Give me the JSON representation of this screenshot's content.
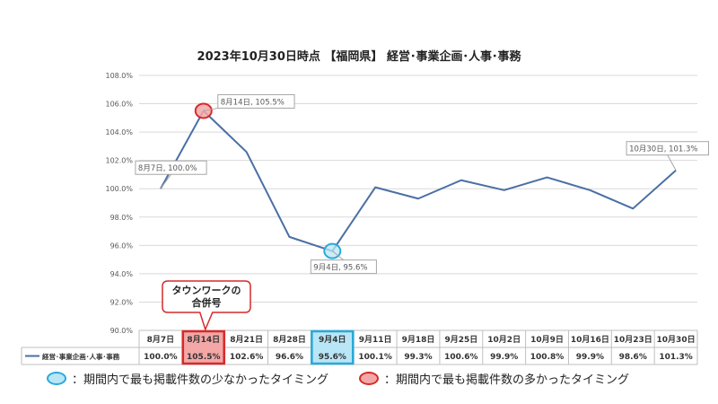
{
  "chart_data": {
    "type": "line",
    "title": "2023年10月30日時点 【福岡県】 経営･事業企画･人事･事務",
    "categories": [
      "8月7日",
      "8月14日",
      "8月21日",
      "8月28日",
      "9月4日",
      "9月11日",
      "9月18日",
      "9月25日",
      "10月2日",
      "10月9日",
      "10月16日",
      "10月23日",
      "10月30日"
    ],
    "series": [
      {
        "name": "経営･事業企画･人事･事務",
        "values": [
          100.0,
          105.5,
          102.6,
          96.6,
          95.6,
          100.1,
          99.3,
          100.6,
          99.9,
          100.8,
          99.9,
          98.6,
          101.3
        ],
        "color": "#4a6fa5"
      }
    ],
    "table_values": [
      "100.0%",
      "105.5%",
      "102.6%",
      "96.6%",
      "95.6%",
      "100.1%",
      "99.3%",
      "100.6%",
      "99.9%",
      "100.8%",
      "99.9%",
      "98.6%",
      "101.3%"
    ],
    "yticks": [
      "90.0%",
      "92.0%",
      "94.0%",
      "96.0%",
      "98.0%",
      "100.0%",
      "102.0%",
      "104.0%",
      "106.0%",
      "108.0%"
    ],
    "ylim": [
      90,
      108
    ],
    "grid": true,
    "legend_placement": "data-table",
    "annotations": {
      "points": [
        {
          "index": 0,
          "label": "8月7日, 100.0%"
        },
        {
          "index": 1,
          "label": "8月14日, 105.5%"
        },
        {
          "index": 4,
          "label": "9月4日, 95.6%"
        },
        {
          "index": 12,
          "label": "10月30日, 101.3%"
        }
      ],
      "max_index": 1,
      "min_index": 4,
      "callout_lines": [
        "タウンワークの",
        "合併号"
      ],
      "callout_index": 1
    },
    "colors": {
      "max_fill": "#f4a7a7",
      "max_stroke": "#d62a2a",
      "min_fill": "#b9e6f6",
      "min_stroke": "#29a9d8",
      "grid": "#d9d9d9"
    }
  },
  "notes": {
    "low": "：期間内で最も掲載件数の少なかったタイミング",
    "high": "：期間内で最も掲載件数の多かったタイミング"
  }
}
